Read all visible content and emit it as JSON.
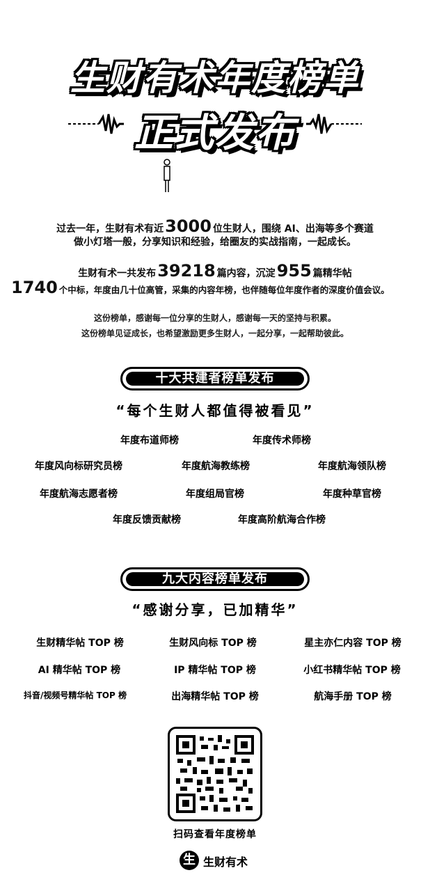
{
  "header": {
    "title": "生财有术年度榜单",
    "subtitle": "正式发布"
  },
  "intro": {
    "line1_pre": "过去一年，生财有术有近",
    "line1_num": "3000",
    "line1_post": "位生财人，围绕 AI、出海等多个赛道",
    "line2": "做小灯塔一般，分享知识和经验，给圈友的实战指南，一起成长。",
    "line3_pre": "生财有术一共发布",
    "line3_num1": "39218",
    "line3_mid": "篇内容，沉淀",
    "line3_num2": "955",
    "line3_post": "篇精华帖",
    "line4_num": "1740",
    "line4_text": "个中标，年度由几十位高管，采集的内容年榜，也伴随每位年度作者的深度价值会议。",
    "line5": "这份榜单，感谢每一位分享的生财人，感谢每一天的坚持与积累。",
    "line6": "这份榜单见证成长，也希望激励更多生财人，一起分享，一起帮助彼此。"
  },
  "section1": {
    "pill": "十大共建者榜单发布",
    "quote": "“每个生财人都值得被看见”",
    "items": [
      "年度布道师榜",
      "年度传术师榜",
      "年度风向标研究员榜",
      "年度航海教练榜",
      "年度航海领队榜",
      "年度航海志愿者榜",
      "年度组局官榜",
      "年度种草官榜",
      "年度反馈贡献榜",
      "年度高阶航海合作榜"
    ]
  },
  "section2": {
    "pill": "九大内容榜单发布",
    "quote": "“感谢分享，已加精华”",
    "items": [
      "生财精华帖 TOP 榜",
      "生财风向标 TOP 榜",
      "星主亦仁内容 TOP 榜",
      "AI 精华帖 TOP 榜",
      "IP 精华帖 TOP 榜",
      "小红书精华帖 TOP 榜",
      "抖音/视频号精华帖 TOP 榜",
      "出海精华帖 TOP 榜",
      "航海手册 TOP 榜"
    ]
  },
  "footer": {
    "scan_label": "扫码查看年度榜单",
    "logo_glyph": "生",
    "logo_text": "生财有术"
  }
}
